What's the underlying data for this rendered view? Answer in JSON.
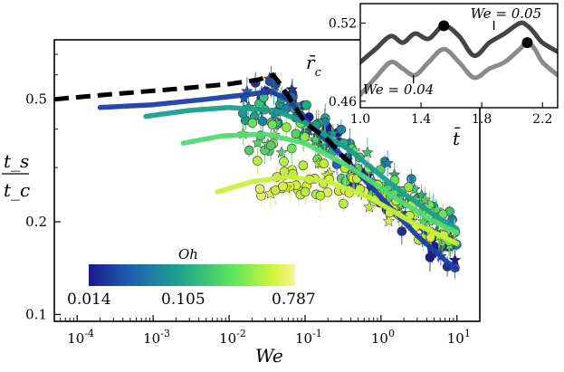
{
  "chart_data": [
    {
      "type": "scatter",
      "scale": "log-log",
      "xlabel": "We",
      "ylabel_num": "t_s",
      "ylabel_den": "t_c",
      "xlim": [
        5e-05,
        20
      ],
      "ylim": [
        0.095,
        0.78
      ],
      "xticks": [
        {
          "value": 0.0001,
          "base": "10",
          "exp": "-4"
        },
        {
          "value": 0.001,
          "base": "10",
          "exp": "-3"
        },
        {
          "value": 0.01,
          "base": "10",
          "exp": "-2"
        },
        {
          "value": 0.1,
          "base": "10",
          "exp": "-1"
        },
        {
          "value": 1,
          "base": "10",
          "exp": "0"
        },
        {
          "value": 10,
          "base": "10",
          "exp": "1"
        }
      ],
      "yticks": [
        {
          "value": 0.5,
          "label": "0.5"
        },
        {
          "value": 0.2,
          "label": "0.2"
        },
        {
          "value": 0.1,
          "label": "0.1"
        }
      ],
      "reference_line": {
        "style": "dashed-black",
        "x": [
          5e-05,
          0.0003,
          0.002,
          0.01,
          0.025,
          0.038,
          0.05,
          0.1,
          0.2,
          0.3,
          0.4
        ],
        "y": [
          0.5,
          0.52,
          0.54,
          0.56,
          0.58,
          0.6,
          0.55,
          0.42,
          0.37,
          0.33,
          0.31
        ]
      },
      "series": [
        {
          "name": "Oh = 0.014",
          "color": "#1f3ea8",
          "x": [
            0.0002,
            0.001,
            0.005,
            0.02,
            0.035,
            0.06,
            0.1,
            0.3,
            1,
            3,
            7,
            10
          ],
          "y": [
            0.47,
            0.48,
            0.5,
            0.52,
            0.53,
            0.5,
            0.43,
            0.33,
            0.24,
            0.18,
            0.15,
            0.14
          ]
        },
        {
          "name": "Oh = 0.06",
          "color": "#1a9e8e",
          "x": [
            0.0008,
            0.003,
            0.01,
            0.04,
            0.1,
            0.4,
            1.5,
            5,
            10
          ],
          "y": [
            0.44,
            0.46,
            0.47,
            0.46,
            0.42,
            0.34,
            0.26,
            0.21,
            0.19
          ]
        },
        {
          "name": "Oh = 0.2",
          "color": "#56d873",
          "x": [
            0.0025,
            0.008,
            0.03,
            0.1,
            0.4,
            1.5,
            5,
            10
          ],
          "y": [
            0.36,
            0.38,
            0.385,
            0.36,
            0.3,
            0.24,
            0.2,
            0.185
          ]
        },
        {
          "name": "Oh = 0.5",
          "color": "#c7f03a",
          "x": [
            0.007,
            0.02,
            0.06,
            0.2,
            0.7,
            2.5,
            10
          ],
          "y": [
            0.25,
            0.27,
            0.28,
            0.27,
            0.24,
            0.2,
            0.17
          ]
        }
      ],
      "colorbar": {
        "label": "Oh",
        "ticks": [
          "0.014",
          "0.105",
          "0.787"
        ],
        "colors": [
          "#1a1a8c",
          "#1f5fb0",
          "#21a68c",
          "#5de65a",
          "#d8f53a",
          "#f5f59a"
        ]
      }
    },
    {
      "type": "line",
      "xlabel": "t̄",
      "ylabel": "r̄_c",
      "xlim": [
        1.0,
        2.3
      ],
      "ylim": [
        0.455,
        0.535
      ],
      "xticks": [
        "1.0",
        "1.4",
        "1.8",
        "2.2"
      ],
      "yticks": [
        "0.52",
        "0.46"
      ],
      "series": [
        {
          "name": "We = 0.05",
          "color": "#444444",
          "x": [
            1.0,
            1.1,
            1.2,
            1.28,
            1.36,
            1.45,
            1.55,
            1.65,
            1.75,
            1.85,
            1.95,
            2.05,
            2.1,
            2.15,
            2.2,
            2.3
          ],
          "y": [
            0.49,
            0.5,
            0.51,
            0.505,
            0.512,
            0.508,
            0.518,
            0.51,
            0.495,
            0.505,
            0.512,
            0.52,
            0.518,
            0.512,
            0.505,
            0.498
          ],
          "marker_x": 1.55,
          "marker_y": 0.518
        },
        {
          "name": "We = 0.04",
          "color": "#8a8a8a",
          "x": [
            1.0,
            1.1,
            1.2,
            1.28,
            1.36,
            1.45,
            1.55,
            1.65,
            1.75,
            1.85,
            1.95,
            2.05,
            2.1,
            2.15,
            2.2,
            2.3
          ],
          "y": [
            0.465,
            0.478,
            0.49,
            0.485,
            0.48,
            0.49,
            0.5,
            0.49,
            0.478,
            0.485,
            0.49,
            0.5,
            0.505,
            0.5,
            0.49,
            0.48
          ],
          "marker_x": 2.1,
          "marker_y": 0.505
        }
      ],
      "annotations": [
        {
          "text": "We = 0.05",
          "anchor_x": 1.88
        },
        {
          "text": "We = 0.04",
          "anchor_x": 1.35
        }
      ]
    }
  ]
}
